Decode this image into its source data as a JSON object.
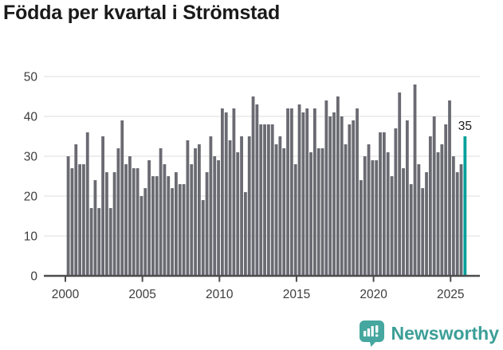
{
  "title": "Födda per kvartal i Strömstad",
  "footer": {
    "brand": "Newsworthy"
  },
  "chart_data": {
    "type": "bar",
    "title": "Födda per kvartal i Strömstad",
    "x_start_year": 2000,
    "x_start_quarter": 1,
    "x_tick_years": [
      "2000",
      "2005",
      "2010",
      "2015",
      "2020",
      "2025"
    ],
    "y_ticks": [
      "0",
      "10",
      "20",
      "30",
      "40",
      "50"
    ],
    "ylim": [
      0,
      50
    ],
    "grid": true,
    "values": [
      30,
      27,
      33,
      28,
      28,
      36,
      17,
      24,
      17,
      35,
      26,
      17,
      26,
      32,
      39,
      28,
      30,
      27,
      27,
      20,
      22,
      29,
      25,
      25,
      32,
      28,
      25,
      22,
      26,
      23,
      23,
      34,
      28,
      32,
      33,
      19,
      26,
      35,
      30,
      29,
      42,
      41,
      34,
      42,
      31,
      35,
      21,
      35,
      45,
      43,
      38,
      38,
      38,
      38,
      33,
      35,
      32,
      42,
      42,
      28,
      43,
      41,
      42,
      31,
      42,
      32,
      32,
      44,
      40,
      41,
      45,
      40,
      33,
      38,
      39,
      42,
      24,
      30,
      33,
      29,
      29,
      36,
      36,
      31,
      25,
      37,
      46,
      27,
      39,
      23,
      48,
      28,
      22,
      26,
      35,
      40,
      31,
      33,
      38,
      44,
      30,
      26,
      28,
      35
    ],
    "highlight": {
      "index": 103,
      "value": 35,
      "label": "35"
    },
    "legend_position": "none",
    "colors": {
      "bar": "#6a6a72",
      "highlight": "#00a09a",
      "grid": "#e3e3e3",
      "axis": "#4d4d4d",
      "tick_label": "#3d3d3d",
      "value_label": "#1a1a1a",
      "brand": "#3b9f97",
      "icon": "#45a79f"
    }
  }
}
